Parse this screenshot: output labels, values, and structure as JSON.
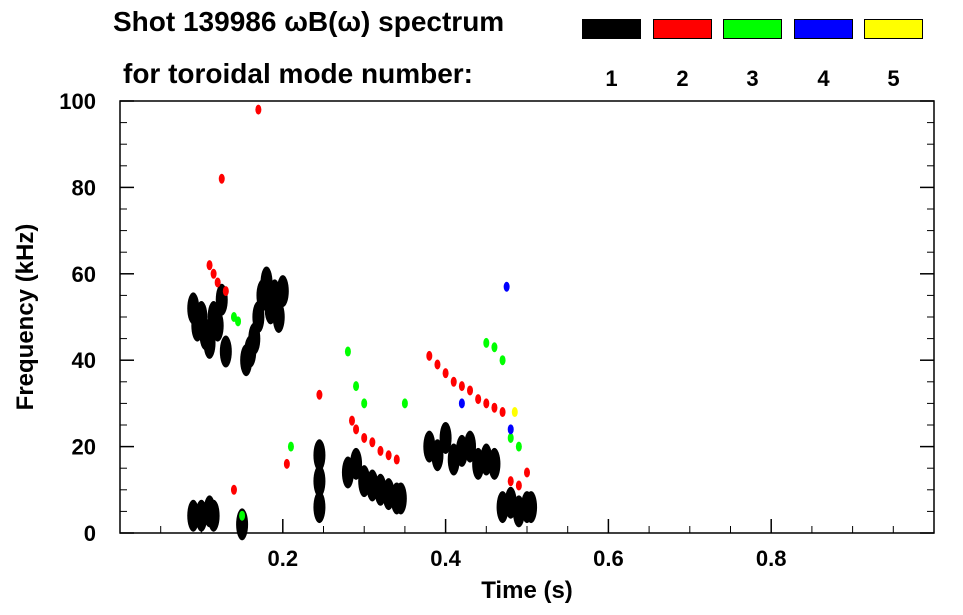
{
  "title": {
    "line1": "Shot 139986 ωB(ω) spectrum",
    "line2": "for toroidal mode number:"
  },
  "legend": [
    {
      "label": "1",
      "color": "#000000"
    },
    {
      "label": "2",
      "color": "#ff0000"
    },
    {
      "label": "3",
      "color": "#00ff00"
    },
    {
      "label": "4",
      "color": "#0000ff"
    },
    {
      "label": "5",
      "color": "#ffff00"
    }
  ],
  "chart_data": {
    "type": "heatmap",
    "title": "Shot 139986 ωB(ω) spectrum for toroidal mode number:",
    "xlabel": "Time (s)",
    "ylabel": "Frequency (kHz)",
    "xlim": [
      0.0,
      1.0
    ],
    "ylim": [
      0,
      100
    ],
    "x_ticks": [
      0.2,
      0.4,
      0.6,
      0.8
    ],
    "x_tick_labels": [
      "0.2",
      "0.4",
      "0.6",
      "0.8"
    ],
    "y_ticks": [
      0,
      20,
      40,
      60,
      80,
      100
    ],
    "y_tick_labels": [
      "0",
      "20",
      "40",
      "60",
      "80",
      "100"
    ],
    "series": [
      {
        "name": "1",
        "color": "#000000",
        "points": [
          [
            0.09,
            52
          ],
          [
            0.095,
            48
          ],
          [
            0.1,
            50
          ],
          [
            0.105,
            46
          ],
          [
            0.11,
            44
          ],
          [
            0.115,
            50
          ],
          [
            0.12,
            48
          ],
          [
            0.125,
            54
          ],
          [
            0.13,
            42
          ],
          [
            0.09,
            4
          ],
          [
            0.1,
            4
          ],
          [
            0.11,
            5
          ],
          [
            0.115,
            4
          ],
          [
            0.15,
            2
          ],
          [
            0.155,
            40
          ],
          [
            0.16,
            42
          ],
          [
            0.165,
            45
          ],
          [
            0.17,
            50
          ],
          [
            0.175,
            55
          ],
          [
            0.18,
            58
          ],
          [
            0.185,
            52
          ],
          [
            0.19,
            55
          ],
          [
            0.195,
            50
          ],
          [
            0.2,
            56
          ],
          [
            0.245,
            12
          ],
          [
            0.245,
            18
          ],
          [
            0.245,
            6
          ],
          [
            0.28,
            14
          ],
          [
            0.29,
            16
          ],
          [
            0.3,
            12
          ],
          [
            0.31,
            11
          ],
          [
            0.32,
            10
          ],
          [
            0.33,
            9
          ],
          [
            0.34,
            8
          ],
          [
            0.345,
            8
          ],
          [
            0.38,
            20
          ],
          [
            0.39,
            18
          ],
          [
            0.4,
            22
          ],
          [
            0.41,
            17
          ],
          [
            0.42,
            19
          ],
          [
            0.43,
            20
          ],
          [
            0.44,
            16
          ],
          [
            0.45,
            17
          ],
          [
            0.46,
            16
          ],
          [
            0.47,
            6
          ],
          [
            0.48,
            7
          ],
          [
            0.49,
            5
          ],
          [
            0.5,
            6
          ],
          [
            0.505,
            6
          ]
        ]
      },
      {
        "name": "2",
        "color": "#ff0000",
        "points": [
          [
            0.11,
            62
          ],
          [
            0.115,
            60
          ],
          [
            0.12,
            58
          ],
          [
            0.13,
            56
          ],
          [
            0.125,
            82
          ],
          [
            0.14,
            10
          ],
          [
            0.17,
            98
          ],
          [
            0.205,
            16
          ],
          [
            0.245,
            32
          ],
          [
            0.285,
            26
          ],
          [
            0.29,
            24
          ],
          [
            0.3,
            22
          ],
          [
            0.31,
            21
          ],
          [
            0.32,
            19
          ],
          [
            0.33,
            18
          ],
          [
            0.34,
            17
          ],
          [
            0.38,
            41
          ],
          [
            0.39,
            39
          ],
          [
            0.4,
            37
          ],
          [
            0.41,
            35
          ],
          [
            0.42,
            34
          ],
          [
            0.43,
            33
          ],
          [
            0.44,
            31
          ],
          [
            0.45,
            30
          ],
          [
            0.46,
            29
          ],
          [
            0.47,
            28
          ],
          [
            0.48,
            12
          ],
          [
            0.49,
            11
          ],
          [
            0.5,
            14
          ]
        ]
      },
      {
        "name": "3",
        "color": "#00ff00",
        "points": [
          [
            0.14,
            50
          ],
          [
            0.145,
            49
          ],
          [
            0.21,
            20
          ],
          [
            0.15,
            4
          ],
          [
            0.28,
            42
          ],
          [
            0.29,
            34
          ],
          [
            0.3,
            30
          ],
          [
            0.35,
            30
          ],
          [
            0.45,
            44
          ],
          [
            0.46,
            43
          ],
          [
            0.47,
            40
          ],
          [
            0.48,
            22
          ],
          [
            0.49,
            20
          ]
        ]
      },
      {
        "name": "4",
        "color": "#0000ff",
        "points": [
          [
            0.475,
            57
          ],
          [
            0.42,
            30
          ],
          [
            0.48,
            24
          ]
        ]
      },
      {
        "name": "5",
        "color": "#ffff00",
        "points": [
          [
            0.485,
            28
          ]
        ]
      }
    ]
  }
}
